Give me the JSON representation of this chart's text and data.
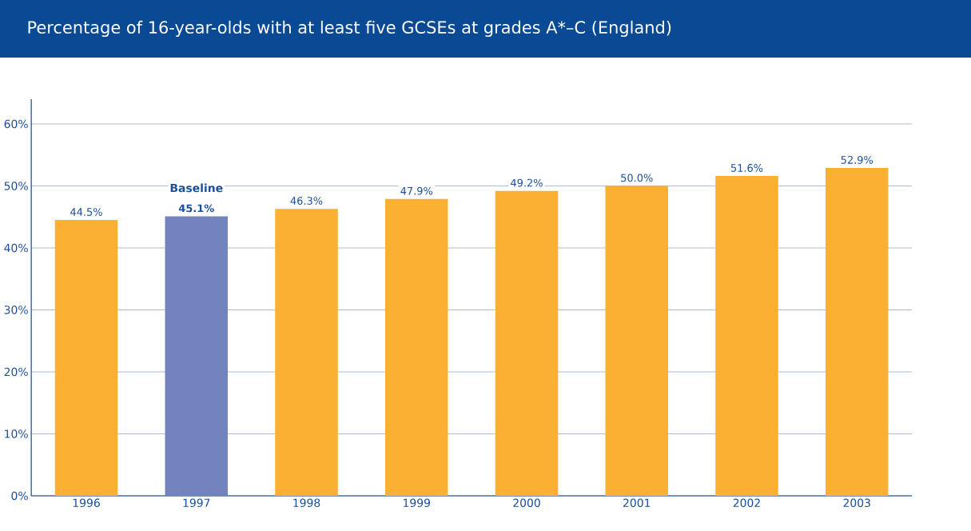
{
  "chart_data": {
    "type": "bar",
    "title": "Percentage of 16-year-olds with at least five GCSEs at grades A*–C (England)",
    "categories": [
      "1996",
      "1997",
      "1998",
      "1999",
      "2000",
      "2001",
      "2002",
      "2003"
    ],
    "values": [
      44.5,
      45.1,
      46.3,
      47.9,
      49.2,
      50.0,
      51.6,
      52.9
    ],
    "colors": [
      "#fbb034",
      "#7384bd",
      "#fbb034",
      "#fbb034",
      "#fbb034",
      "#fbb034",
      "#fbb034",
      "#fbb034"
    ],
    "value_labels": [
      "44.5%",
      "**45.1%**",
      "46.3%",
      "47.9%",
      "49.2%",
      "50.0%",
      "51.6%",
      "52.9%"
    ],
    "annotations": [
      {
        "text": "Baseline",
        "x": "1997",
        "y": 45.1
      }
    ],
    "ylim": [
      0,
      64
    ],
    "yticks": [
      {
        "value": 0,
        "label": "0%"
      },
      {
        "value": 10,
        "label": "10%"
      },
      {
        "value": 20,
        "label": "20%"
      },
      {
        "value": 30,
        "label": "30%"
      },
      {
        "value": 40,
        "label": "40%"
      },
      {
        "value": 50,
        "label": "50%"
      },
      {
        "value": 60,
        "label": "60%"
      }
    ],
    "grid": "y"
  }
}
